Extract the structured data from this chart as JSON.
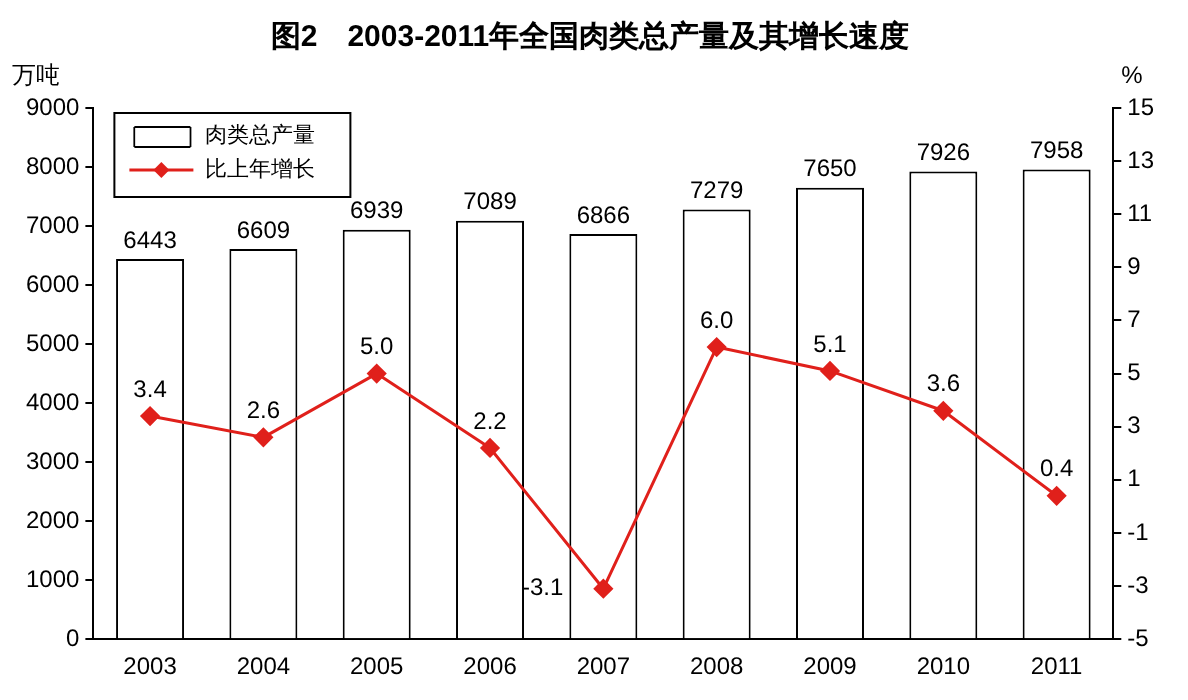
{
  "chart_data": {
    "type": "bar",
    "title": "图2　2003-2011年全国肉类总产量及其增长速度",
    "ylabel": "万吨",
    "y2label": "%",
    "categories": [
      "2003",
      "2004",
      "2005",
      "2006",
      "2007",
      "2008",
      "2009",
      "2010",
      "2011"
    ],
    "series": [
      {
        "name": "肉类总产量",
        "color": "#ffffff",
        "values": [
          6443,
          6609,
          6939,
          7089,
          6866,
          7279,
          7650,
          7926,
          7958
        ]
      },
      {
        "name": "比上年增长",
        "type": "line",
        "axis": "y2",
        "color": "#e0201b",
        "marker": "diamond",
        "values": [
          3.4,
          2.6,
          5.0,
          2.2,
          -3.1,
          6.0,
          5.1,
          3.6,
          0.4
        ],
        "value_labels": [
          "3.4",
          "2.6",
          "5.0",
          "2.2",
          "-3.1",
          "6.0",
          "5.1",
          "3.6",
          "0.4"
        ]
      }
    ],
    "ylim": [
      0,
      9000
    ],
    "yticks": [
      0,
      1000,
      2000,
      3000,
      4000,
      5000,
      6000,
      7000,
      8000,
      9000
    ],
    "y2lim": [
      -5,
      15
    ],
    "y2ticks": [
      -5,
      -3,
      -1,
      1,
      3,
      5,
      7,
      9,
      11,
      13,
      15
    ],
    "data_labels": true,
    "grid": false,
    "legend": "top left"
  }
}
